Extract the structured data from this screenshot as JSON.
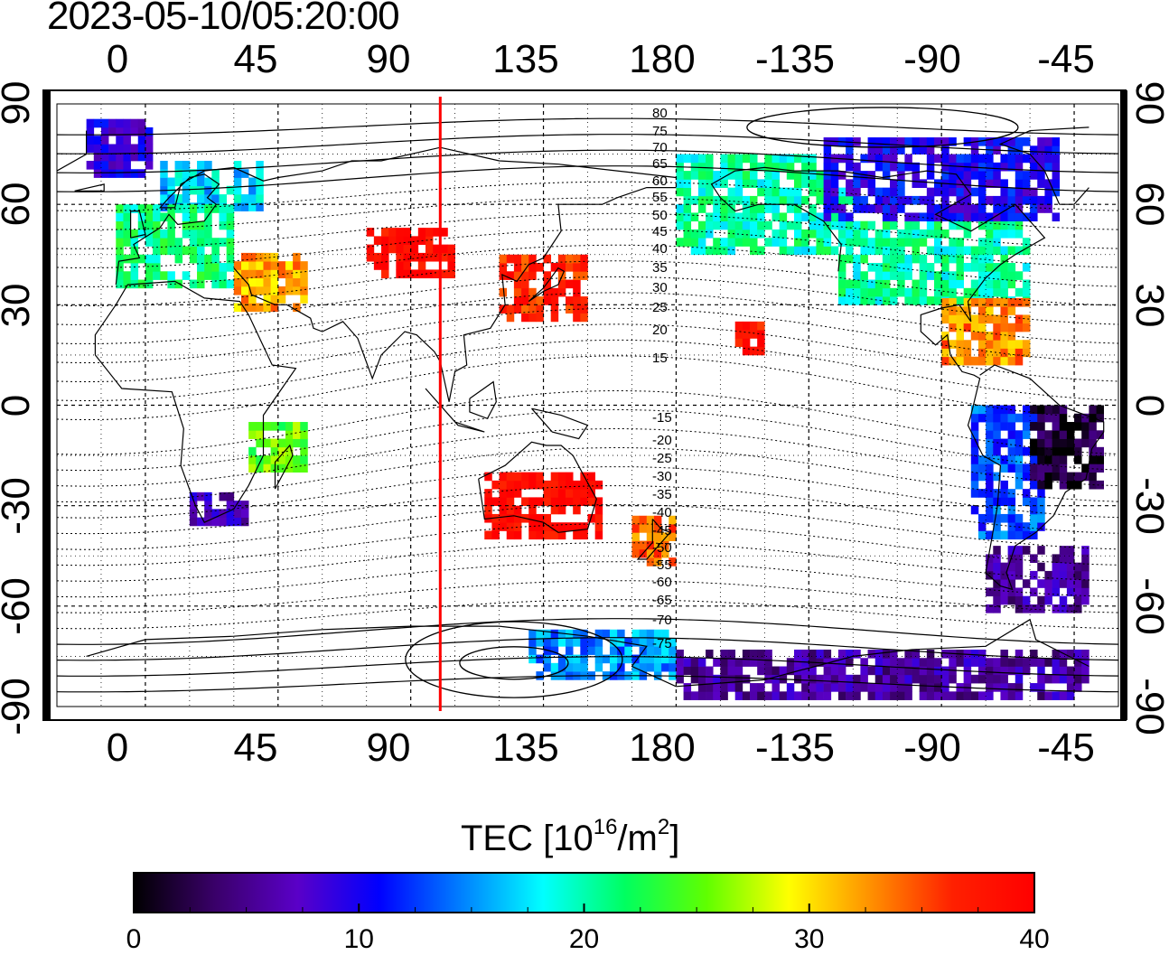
{
  "title": "2023-05-10/05:20:00",
  "longitude_ticks": [
    "0",
    "45",
    "90",
    "135",
    "180",
    "-135",
    "-90",
    "-45"
  ],
  "latitude_ticks": [
    "90",
    "60",
    "30",
    "0",
    "-30",
    "-60",
    "-90"
  ],
  "contour_labels": [
    "80",
    "75",
    "70",
    "65",
    "60",
    "55",
    "50",
    "45",
    "40",
    "35",
    "30",
    "25",
    "20",
    "15",
    "-15",
    "-20",
    "-25",
    "-30",
    "-35",
    "-40",
    "-45",
    "-50",
    "-55",
    "-60",
    "-65",
    "-70",
    "-75"
  ],
  "marker_longitude": 100,
  "colorbar": {
    "title_main": "TEC  [10",
    "title_exp": "16",
    "title_mid": "/m",
    "title_exp2": "2",
    "title_end": "]",
    "ticks": [
      "0",
      "10",
      "20",
      "30",
      "40"
    ],
    "range": [
      0,
      40
    ],
    "colors": [
      "#000000",
      "#3a006a",
      "#5a00c8",
      "#0000ff",
      "#0080ff",
      "#00ffff",
      "#00ff60",
      "#60ff00",
      "#ffff00",
      "#ff9000",
      "#ff2000",
      "#ff0000"
    ]
  },
  "regions": [
    {
      "name": "greenland-arctic",
      "lon": [
        -20,
        2
      ],
      "lat": [
        68,
        85
      ],
      "tec": 9
    },
    {
      "name": "scandinavia",
      "lon": [
        5,
        40
      ],
      "lat": [
        58,
        72
      ],
      "tec": 17
    },
    {
      "name": "europe",
      "lon": [
        -10,
        30
      ],
      "lat": [
        35,
        58
      ],
      "tec": 21
    },
    {
      "name": "mediterranean-east",
      "lon": [
        30,
        55
      ],
      "lat": [
        28,
        45
      ],
      "tec": 32
    },
    {
      "name": "central-asia",
      "lon": [
        75,
        105
      ],
      "lat": [
        38,
        52
      ],
      "tec": 39
    },
    {
      "name": "east-asia",
      "lon": [
        120,
        150
      ],
      "lat": [
        25,
        45
      ],
      "tec": 37
    },
    {
      "name": "north-pacific",
      "lon": [
        180,
        -120
      ],
      "lat": [
        45,
        75
      ],
      "tec": 20
    },
    {
      "name": "north-america",
      "lon": [
        -125,
        -60
      ],
      "lat": [
        30,
        55
      ],
      "tec": 20
    },
    {
      "name": "canada",
      "lon": [
        -130,
        -50
      ],
      "lat": [
        55,
        80
      ],
      "tec": 10
    },
    {
      "name": "caribbean",
      "lon": [
        -90,
        -60
      ],
      "lat": [
        12,
        30
      ],
      "tec": 33
    },
    {
      "name": "south-america-west",
      "lon": [
        -80,
        -55
      ],
      "lat": [
        -40,
        0
      ],
      "tec": 13
    },
    {
      "name": "south-america-east",
      "lon": [
        -60,
        -35
      ],
      "lat": [
        -25,
        0
      ],
      "tec": 2
    },
    {
      "name": "patagonia",
      "lon": [
        -75,
        -40
      ],
      "lat": [
        -62,
        -42
      ],
      "tec": 6
    },
    {
      "name": "southern-africa",
      "lon": [
        15,
        35
      ],
      "lat": [
        -36,
        -28
      ],
      "tec": 7
    },
    {
      "name": "east-africa",
      "lon": [
        35,
        55
      ],
      "lat": [
        -20,
        -5
      ],
      "tec": 25
    },
    {
      "name": "new-zealand",
      "lon": [
        165,
        180
      ],
      "lat": [
        -48,
        -35
      ],
      "tec": 34
    },
    {
      "name": "australia",
      "lon": [
        115,
        155
      ],
      "lat": [
        -40,
        -20
      ],
      "tec": 39
    },
    {
      "name": "antarctica-east",
      "lon": [
        130,
        180
      ],
      "lat": [
        -82,
        -68
      ],
      "tec": 15
    },
    {
      "name": "antarctica-south",
      "lon": [
        -180,
        -40
      ],
      "lat": [
        -88,
        -75
      ],
      "tec": 6
    },
    {
      "name": "hawaii",
      "lon": [
        -160,
        -150
      ],
      "lat": [
        15,
        25
      ],
      "tec": 38
    }
  ]
}
